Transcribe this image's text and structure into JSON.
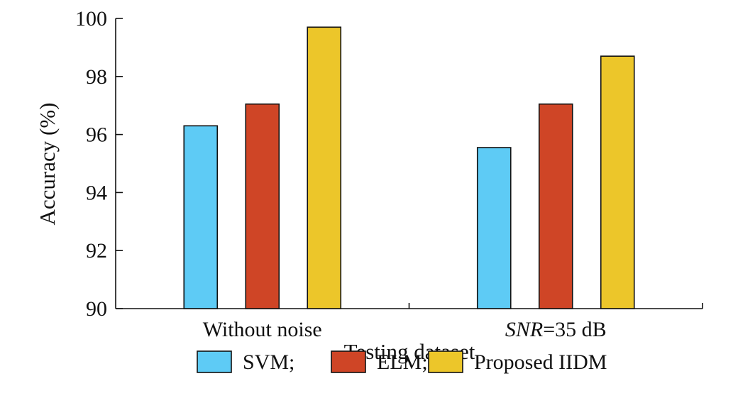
{
  "chart_data": {
    "type": "bar",
    "categories": [
      "Without noise",
      "SNR=35 dB"
    ],
    "category_labels": [
      {
        "italic": "",
        "rest": "Without noise"
      },
      {
        "italic": "SNR",
        "rest": "=35 dB"
      }
    ],
    "series": [
      {
        "name": "SVM",
        "legend_label": "SVM;",
        "color": "#5ecbf5",
        "values": [
          96.3,
          95.55
        ]
      },
      {
        "name": "ELM",
        "legend_label": "ELM;",
        "color": "#cf4526",
        "values": [
          97.05,
          97.05
        ]
      },
      {
        "name": "Proposed IIDM",
        "legend_label": "Proposed IIDM",
        "color": "#ecc62a",
        "values": [
          99.7,
          98.7
        ]
      }
    ],
    "xlabel": "Testing dataset",
    "ylabel": "Accuracy (%)",
    "ylim": [
      90,
      100
    ],
    "yticks": [
      90,
      92,
      94,
      96,
      98,
      100
    ],
    "grid": false,
    "legend_position": "bottom"
  }
}
